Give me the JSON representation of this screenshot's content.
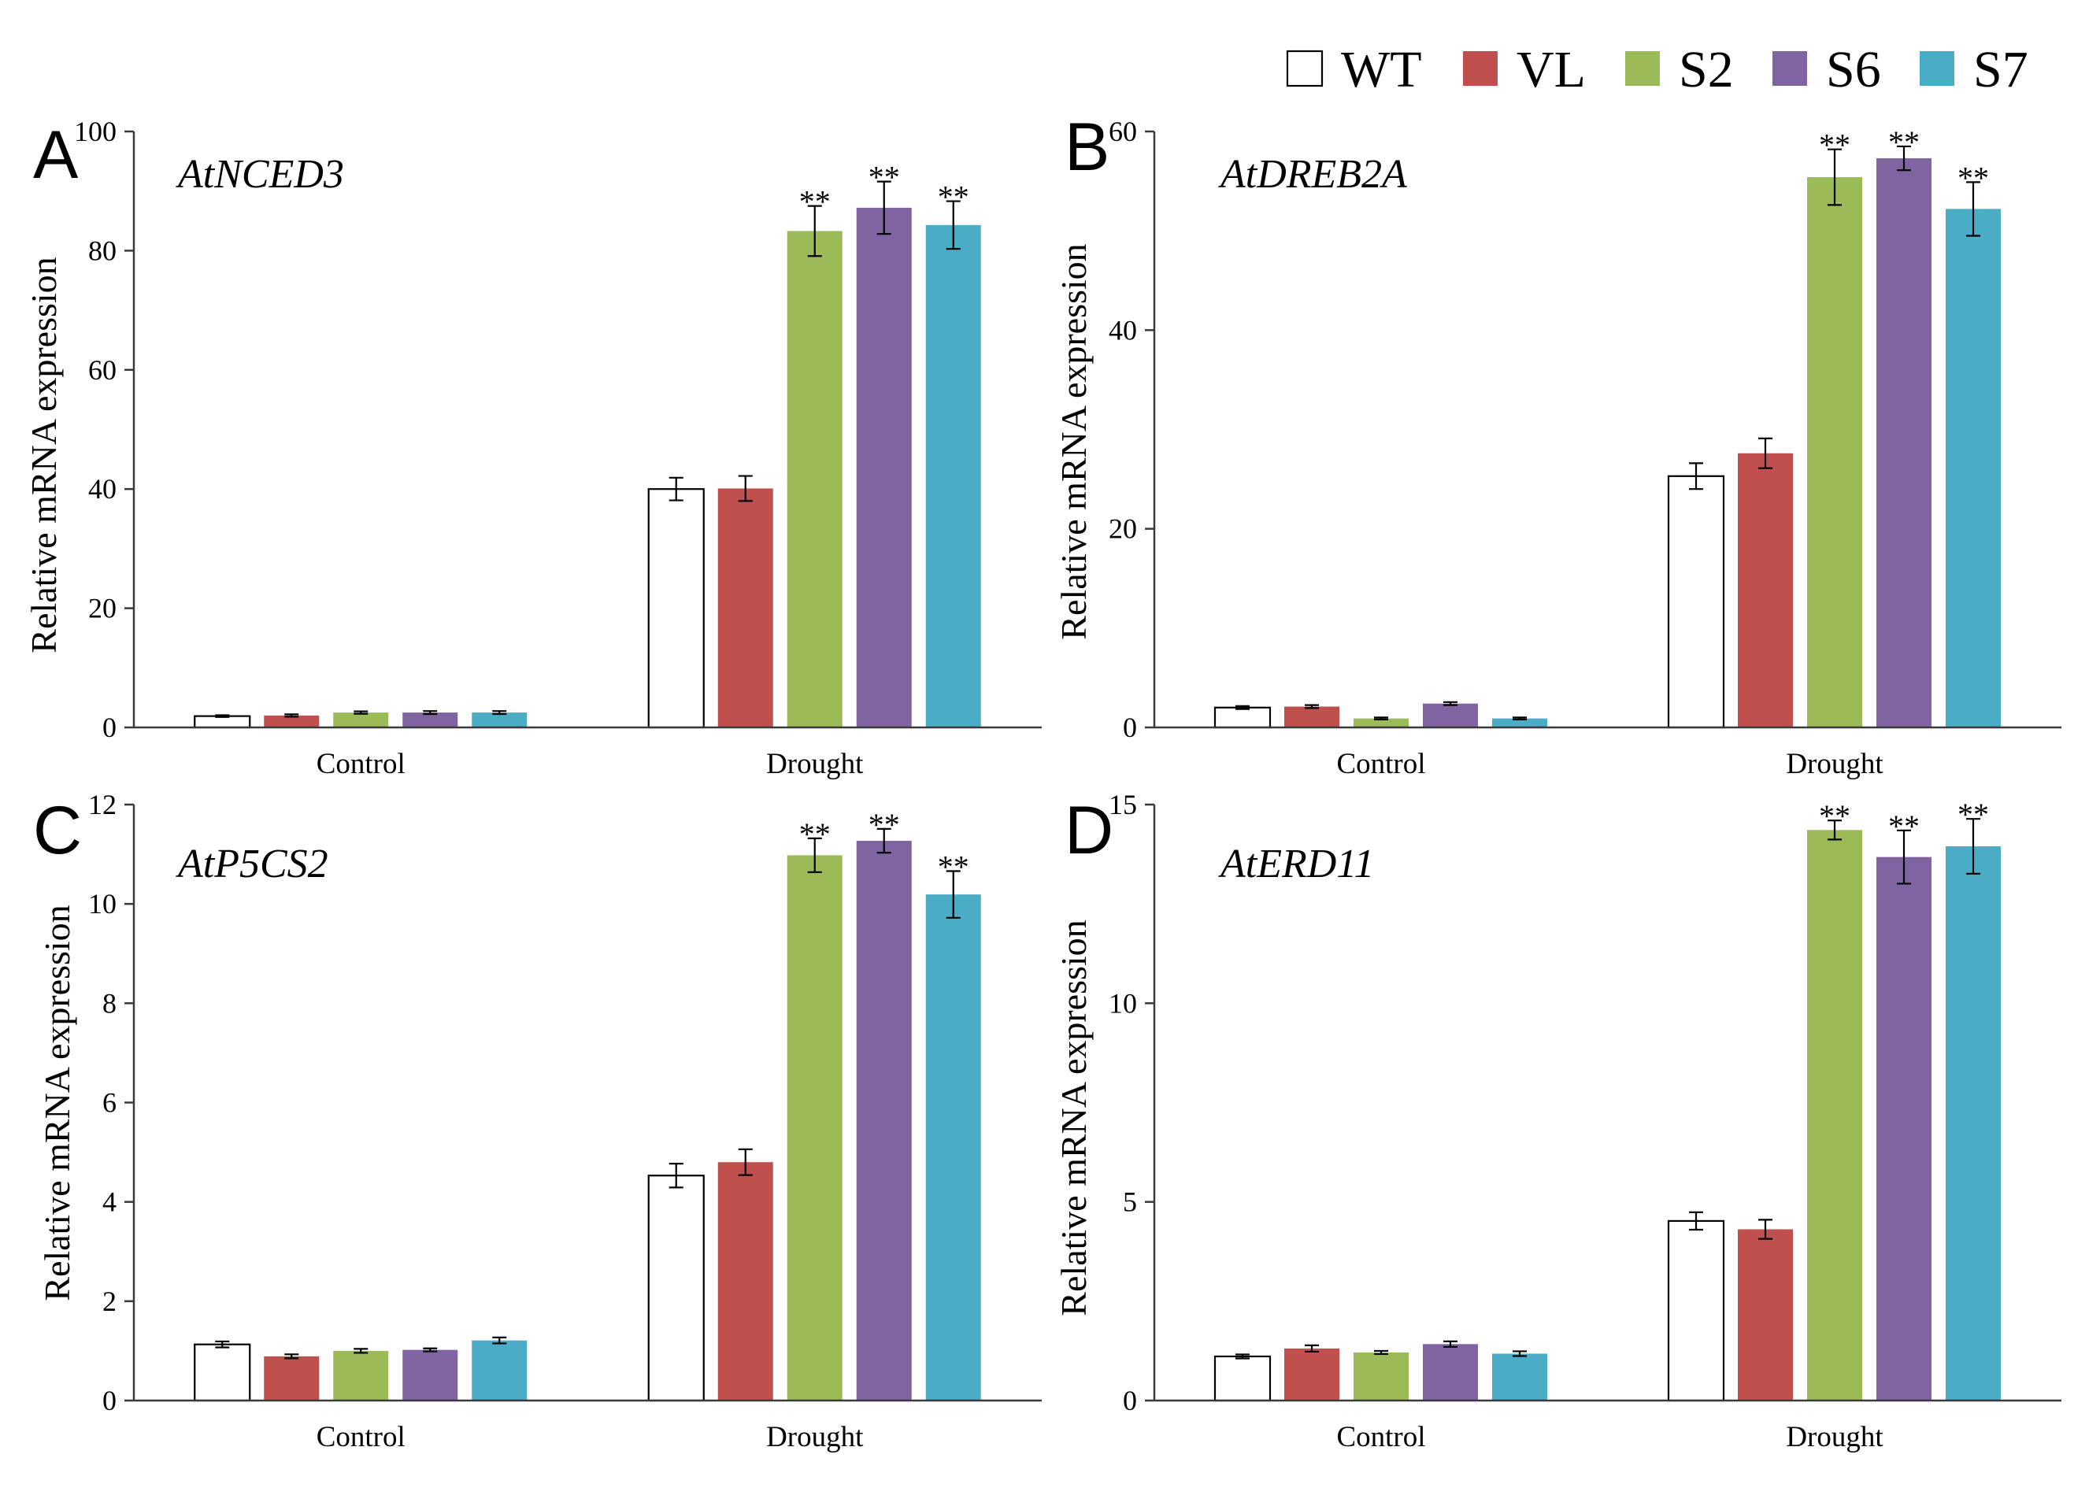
{
  "legend": {
    "entries": [
      {
        "label": "WT",
        "color": "#ffffff",
        "outline": "#000000"
      },
      {
        "label": "VL",
        "color": "#c0504d"
      },
      {
        "label": "S2",
        "color": "#9bbb59"
      },
      {
        "label": "S6",
        "color": "#8064a2"
      },
      {
        "label": "S7",
        "color": "#4bacc6"
      }
    ]
  },
  "chart_data": [
    {
      "type": "bar",
      "panel": "A",
      "title": "AtNCED3",
      "ylabel": "Relative mRNA expression",
      "categories": [
        "Control",
        "Drought"
      ],
      "ylim": [
        0,
        100
      ],
      "yticks": [
        0,
        20,
        40,
        60,
        80,
        100
      ],
      "series": [
        {
          "name": "WT",
          "values": [
            1.9,
            40.0
          ],
          "errors": [
            0.15,
            1.9
          ],
          "significance": [
            null,
            null
          ]
        },
        {
          "name": "VL",
          "values": [
            2.0,
            40.1
          ],
          "errors": [
            0.2,
            2.1
          ],
          "significance": [
            null,
            null
          ]
        },
        {
          "name": "S2",
          "values": [
            2.5,
            83.3
          ],
          "errors": [
            0.2,
            4.2
          ],
          "significance": [
            null,
            "**"
          ]
        },
        {
          "name": "S6",
          "values": [
            2.5,
            87.2
          ],
          "errors": [
            0.25,
            4.4
          ],
          "significance": [
            null,
            "**"
          ]
        },
        {
          "name": "S7",
          "values": [
            2.5,
            84.3
          ],
          "errors": [
            0.25,
            4.0
          ],
          "significance": [
            null,
            "**"
          ]
        }
      ]
    },
    {
      "type": "bar",
      "panel": "B",
      "title": "AtDREB2A",
      "ylabel": "Relative mRNA expression",
      "categories": [
        "Control",
        "Drought"
      ],
      "ylim": [
        0,
        60
      ],
      "yticks": [
        0,
        20,
        40,
        60
      ],
      "series": [
        {
          "name": "WT",
          "values": [
            2.0,
            25.3
          ],
          "errors": [
            0.15,
            1.3
          ],
          "significance": [
            null,
            null
          ]
        },
        {
          "name": "VL",
          "values": [
            2.1,
            27.6
          ],
          "errors": [
            0.15,
            1.5
          ],
          "significance": [
            null,
            null
          ]
        },
        {
          "name": "S2",
          "values": [
            0.9,
            55.4
          ],
          "errors": [
            0.1,
            2.8
          ],
          "significance": [
            null,
            "**"
          ]
        },
        {
          "name": "S6",
          "values": [
            2.4,
            57.3
          ],
          "errors": [
            0.15,
            1.2
          ],
          "significance": [
            null,
            "**"
          ]
        },
        {
          "name": "S7",
          "values": [
            0.9,
            52.2
          ],
          "errors": [
            0.1,
            2.7
          ],
          "significance": [
            null,
            "**"
          ]
        }
      ]
    },
    {
      "type": "bar",
      "panel": "C",
      "title": "AtP5CS2",
      "ylabel": "Relative mRNA expression",
      "categories": [
        "Control",
        "Drought"
      ],
      "ylim": [
        0,
        12
      ],
      "yticks": [
        0,
        2,
        4,
        6,
        8,
        10,
        12
      ],
      "series": [
        {
          "name": "WT",
          "values": [
            1.13,
            4.53
          ],
          "errors": [
            0.06,
            0.24
          ],
          "significance": [
            null,
            null
          ]
        },
        {
          "name": "VL",
          "values": [
            0.89,
            4.8
          ],
          "errors": [
            0.04,
            0.26
          ],
          "significance": [
            null,
            null
          ]
        },
        {
          "name": "S2",
          "values": [
            1.0,
            10.98
          ],
          "errors": [
            0.04,
            0.34
          ],
          "significance": [
            null,
            "**"
          ]
        },
        {
          "name": "S6",
          "values": [
            1.02,
            11.27
          ],
          "errors": [
            0.03,
            0.24
          ],
          "significance": [
            null,
            "**"
          ]
        },
        {
          "name": "S7",
          "values": [
            1.21,
            10.19
          ],
          "errors": [
            0.06,
            0.47
          ],
          "significance": [
            null,
            "**"
          ]
        }
      ]
    },
    {
      "type": "bar",
      "panel": "D",
      "title": "AtERD11",
      "ylabel": "Relative mRNA expression",
      "categories": [
        "Control",
        "Drought"
      ],
      "ylim": [
        0,
        15
      ],
      "yticks": [
        0,
        5,
        10,
        15
      ],
      "series": [
        {
          "name": "WT",
          "values": [
            1.11,
            4.52
          ],
          "errors": [
            0.05,
            0.22
          ],
          "significance": [
            null,
            null
          ]
        },
        {
          "name": "VL",
          "values": [
            1.31,
            4.31
          ],
          "errors": [
            0.08,
            0.24
          ],
          "significance": [
            null,
            null
          ]
        },
        {
          "name": "S2",
          "values": [
            1.21,
            14.36
          ],
          "errors": [
            0.04,
            0.24
          ],
          "significance": [
            null,
            "**"
          ]
        },
        {
          "name": "S6",
          "values": [
            1.42,
            13.68
          ],
          "errors": [
            0.07,
            0.67
          ],
          "significance": [
            null,
            "**"
          ]
        },
        {
          "name": "S7",
          "values": [
            1.18,
            13.95
          ],
          "errors": [
            0.06,
            0.69
          ],
          "significance": [
            null,
            "**"
          ]
        }
      ]
    }
  ]
}
